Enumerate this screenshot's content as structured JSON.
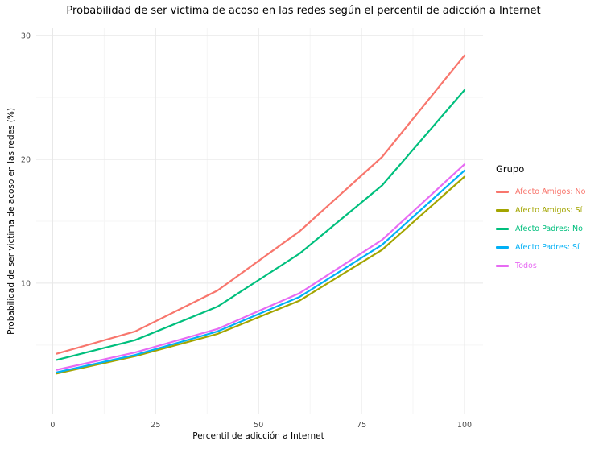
{
  "chart_data": {
    "type": "line",
    "title": "Probabilidad de ser victima de acoso en las redes según el percentil de adicción a Internet",
    "xlabel": "Percentil de adicción a Internet",
    "ylabel": "Probabilidad de ser victima de acoso en las redes (%)",
    "legend_title": "Grupo",
    "legend_position": "right",
    "x": [
      1,
      20,
      40,
      60,
      80,
      100
    ],
    "series": [
      {
        "name": "Afecto Amigos: No",
        "color": "#F8766D",
        "values": [
          4.3,
          6.1,
          9.4,
          14.2,
          20.2,
          28.4
        ]
      },
      {
        "name": "Afecto Amigos: Sí",
        "color": "#A3A500",
        "values": [
          2.7,
          4.1,
          5.9,
          8.6,
          12.7,
          18.6
        ]
      },
      {
        "name": "Afecto Padres: No",
        "color": "#00BF7D",
        "values": [
          3.8,
          5.4,
          8.1,
          12.4,
          17.9,
          25.6
        ]
      },
      {
        "name": "Afecto Padres: Sí",
        "color": "#00B0F6",
        "values": [
          2.8,
          4.2,
          6.1,
          8.9,
          13.1,
          19.1
        ]
      },
      {
        "name": "Todos",
        "color": "#E76BF3",
        "values": [
          3.0,
          4.4,
          6.3,
          9.2,
          13.5,
          19.6
        ]
      }
    ],
    "xlim": [
      -4,
      104.5
    ],
    "ylim": [
      -0.6,
      30.6
    ],
    "xticks": [
      0,
      25,
      50,
      75,
      100
    ],
    "yticks": [
      10,
      20,
      30
    ],
    "grid": {
      "on": true,
      "minor_x": [
        12.5,
        37.5,
        62.5,
        87.5
      ],
      "minor_y": [
        5,
        15,
        25
      ],
      "minor_color": "#f5f5f5",
      "major_color": "#e8e8e8"
    },
    "tick_label_color": "#4d4d4d"
  }
}
